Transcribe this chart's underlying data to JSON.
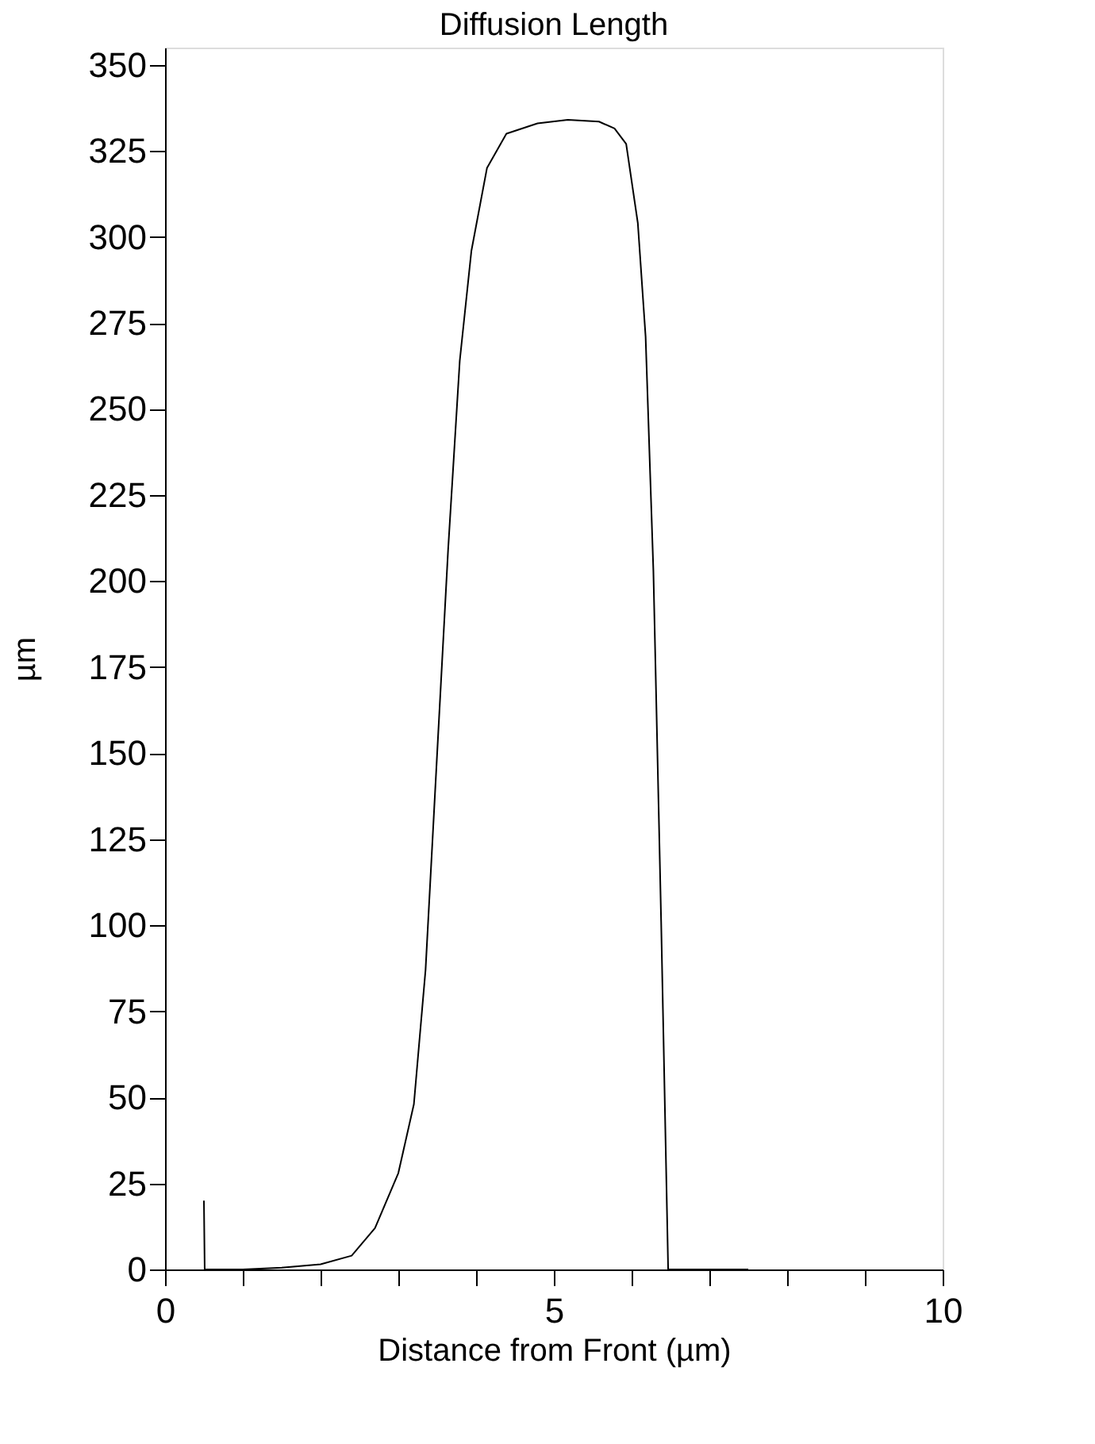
{
  "chart_data": {
    "type": "line",
    "title": "Diffusion Length",
    "xlabel": "Distance from Front (µm)",
    "ylabel": "µm",
    "xlim": [
      0,
      10
    ],
    "ylim": [
      0,
      355
    ],
    "xticks": [
      0,
      {
        "value": 1,
        "label": null
      },
      {
        "value": 2,
        "label": null
      },
      {
        "value": 3,
        "label": null
      },
      {
        "value": 4,
        "label": null
      },
      5,
      {
        "value": 6,
        "label": null
      },
      {
        "value": 7,
        "label": null
      },
      {
        "value": 8,
        "label": null
      },
      {
        "value": 9,
        "label": null
      },
      10
    ],
    "yticks": [
      0,
      25,
      50,
      75,
      100,
      125,
      150,
      175,
      200,
      225,
      250,
      275,
      300,
      325,
      350
    ],
    "grid": false,
    "marker": "none",
    "line_style": "solid",
    "series": [
      {
        "color": "#000000",
        "x": [
          0.5,
          0.51,
          1.0,
          1.5,
          2.0,
          2.4,
          2.7,
          3.0,
          3.2,
          3.35,
          3.49,
          3.64,
          3.79,
          3.94,
          4.14,
          4.39,
          4.79,
          5.18,
          5.58,
          5.78,
          5.93,
          6.08,
          6.18,
          6.28,
          6.38,
          6.47,
          7.0,
          7.5
        ],
        "values": [
          20,
          0,
          0,
          0.5,
          1.5,
          4,
          12,
          28,
          48,
          87,
          146,
          209,
          264,
          296,
          320,
          330,
          333,
          334,
          333.5,
          331.5,
          327,
          304,
          271,
          203,
          101,
          0,
          0,
          0
        ]
      }
    ]
  }
}
